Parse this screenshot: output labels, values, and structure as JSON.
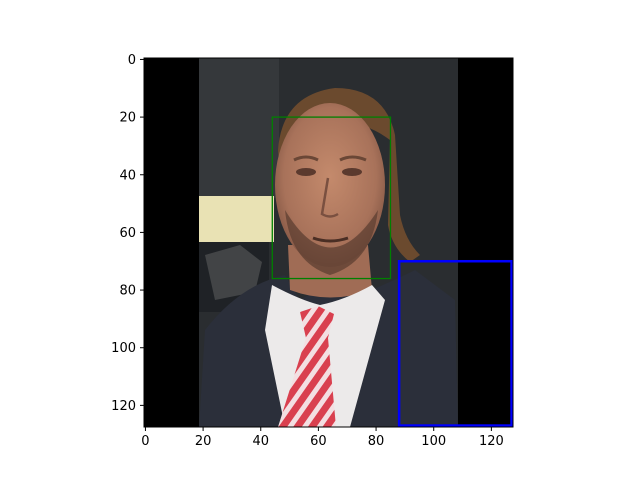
{
  "figure": {
    "image_extent": {
      "x": [
        0,
        127
      ],
      "y": [
        0,
        127
      ]
    },
    "x_ticks": [
      0,
      20,
      40,
      60,
      80,
      100,
      120
    ],
    "y_ticks": [
      0,
      20,
      40,
      60,
      80,
      100,
      120
    ],
    "photo_region_x": [
      19,
      109
    ],
    "padding_color": "#000000",
    "face_box": {
      "x1": 44,
      "y1": 20,
      "x2": 85,
      "y2": 76,
      "color": "#008000"
    },
    "highlight_box": {
      "x1": 88,
      "y1": 70,
      "x2": 127,
      "y2": 127,
      "color": "#0000ff"
    },
    "colors": {
      "background_dark": "#2a2d30",
      "skin": "#b57a5e",
      "hair": "#6b4a2e",
      "suit": "#2b2f3a",
      "shirt": "#eceaea",
      "tie_red": "#d9404f",
      "tie_white": "#f3dfe2",
      "light_patch": "#e9e2b4"
    }
  }
}
